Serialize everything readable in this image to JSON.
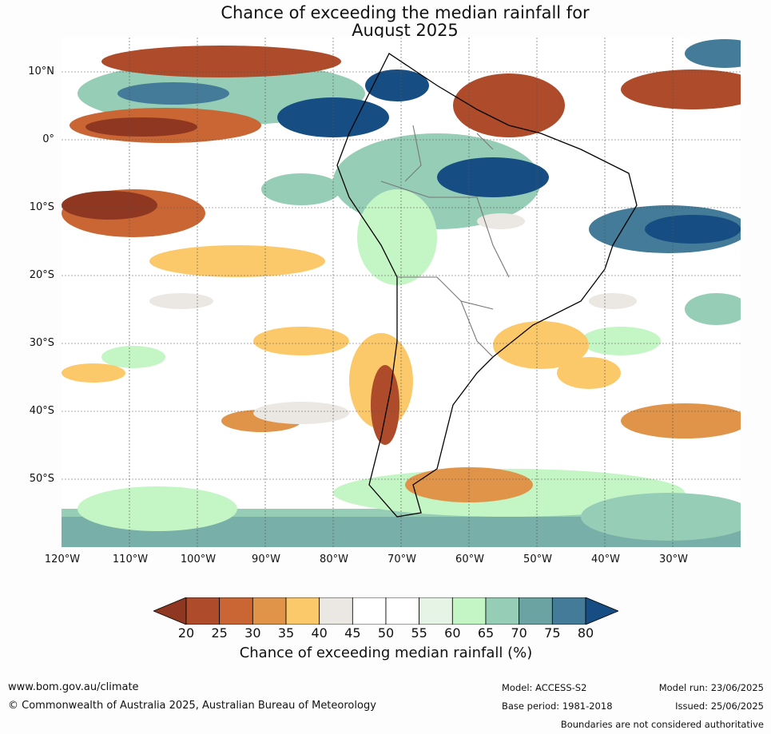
{
  "title": [
    "Chance of exceeding the median rainfall for",
    "August 2025"
  ],
  "lat_labels": [
    "10°N",
    "0°",
    "10°S",
    "20°S",
    "30°S",
    "40°S",
    "50°S"
  ],
  "lon_labels": [
    "120°W",
    "110°W",
    "100°W",
    "90°W",
    "80°W",
    "70°W",
    "60°W",
    "50°W",
    "40°W",
    "30°W"
  ],
  "colorbar": {
    "ticks": [
      "20",
      "25",
      "30",
      "35",
      "40",
      "45",
      "50",
      "55",
      "60",
      "65",
      "70",
      "75",
      "80"
    ],
    "colors": [
      "#8f3720",
      "#ad4b2a",
      "#c96634",
      "#e0944a",
      "#fcc96a",
      "#ebe8e4",
      "#ffffff",
      "#ffffff",
      "#e6f4e6",
      "#c4f5c4",
      "#96cdb6",
      "#6ba3a2",
      "#437b98",
      "#164d82"
    ],
    "label": "Chance of exceeding median rainfall (%)"
  },
  "footer": {
    "website": "www.bom.gov.au/climate",
    "copyright": "© Commonwealth of Australia 2025, Australian Bureau of Meteorology",
    "model": "Model: ACCESS-S2",
    "base_period": "Base period: 1981-2018",
    "model_run": "Model run: 23/06/2025",
    "issued": "Issued: 25/06/2025",
    "disclaimer": "Boundaries are not considered authoritative"
  }
}
